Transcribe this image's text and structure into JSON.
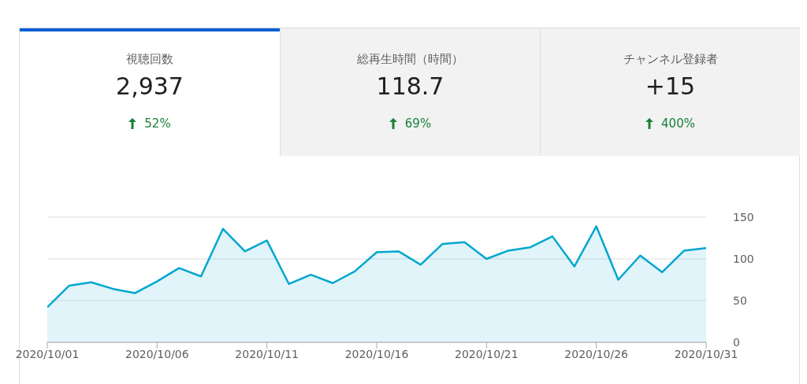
{
  "chart_data": [
    {
      "type": "other",
      "annotations": [
        "視聴回数",
        "2,937",
        "52%",
        "総再生時間（時間）",
        "118.7",
        "69%",
        "チャンネル登録者",
        "+15",
        "400%"
      ]
    },
    {
      "type": "area",
      "x": [
        "2020-10-01",
        "2020-10-02",
        "2020-10-03",
        "2020-10-04",
        "2020-10-05",
        "2020-10-06",
        "2020-10-07",
        "2020-10-08",
        "2020-10-09",
        "2020-10-10",
        "2020-10-11",
        "2020-10-12",
        "2020-10-13",
        "2020-10-14",
        "2020-10-15",
        "2020-10-16",
        "2020-10-17",
        "2020-10-18",
        "2020-10-19",
        "2020-10-20",
        "2020-10-21",
        "2020-10-22",
        "2020-10-23",
        "2020-10-24",
        "2020-10-25",
        "2020-10-26",
        "2020-10-27",
        "2020-10-28",
        "2020-10-29",
        "2020-10-30",
        "2020-10-31"
      ],
      "series": [
        {
          "color": "#00a7d0",
          "values": [
            42,
            68,
            72,
            64,
            59,
            73,
            89,
            79,
            136,
            109,
            122,
            70,
            81,
            71,
            85,
            108,
            109,
            93,
            118,
            120,
            100,
            110,
            114,
            127,
            91,
            139,
            75,
            104,
            84,
            110,
            113
          ]
        }
      ],
      "xlim": [
        "2020-10-01",
        "2020-10-31"
      ],
      "xticks": [
        {
          "value": "2020-10-01",
          "label": "2020/10/01"
        },
        {
          "value": "2020-10-06",
          "label": "2020/10/06"
        },
        {
          "value": "2020-10-11",
          "label": "2020/10/11"
        },
        {
          "value": "2020-10-16",
          "label": "2020/10/16"
        },
        {
          "value": "2020-10-21",
          "label": "2020/10/21"
        },
        {
          "value": "2020-10-26",
          "label": "2020/10/26"
        },
        {
          "value": "2020-10-31",
          "label": "2020/10/31"
        }
      ],
      "ylim": [
        0,
        150
      ],
      "yticks": [
        0,
        50,
        100,
        150
      ],
      "grid": "y",
      "legend": false,
      "marker": "none"
    }
  ]
}
